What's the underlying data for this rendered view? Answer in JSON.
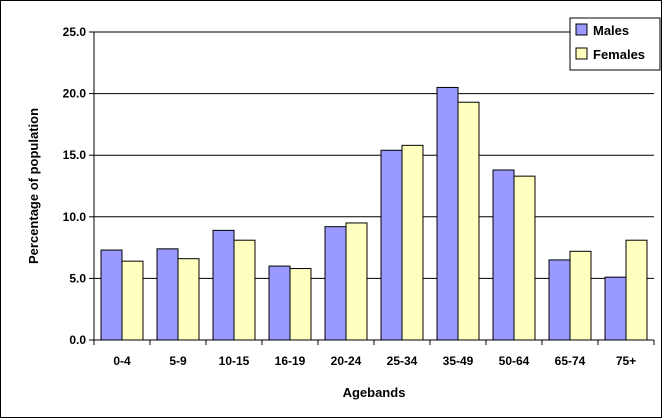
{
  "chart_data": {
    "type": "bar",
    "title": "",
    "xlabel": "Agebands",
    "ylabel": "Percentage of population",
    "categories": [
      "0-4",
      "5-9",
      "10-15",
      "16-19",
      "20-24",
      "25-34",
      "35-49",
      "50-64",
      "65-74",
      "75+"
    ],
    "series": [
      {
        "name": "Males",
        "values": [
          7.3,
          7.4,
          8.9,
          6.0,
          9.2,
          15.4,
          20.5,
          13.8,
          6.5,
          5.1
        ]
      },
      {
        "name": "Females",
        "values": [
          6.4,
          6.6,
          8.1,
          5.8,
          9.5,
          15.8,
          19.3,
          13.3,
          7.2,
          8.1
        ]
      }
    ],
    "ylim": [
      0,
      25
    ],
    "yticks": [
      0.0,
      5.0,
      10.0,
      15.0,
      20.0,
      25.0
    ],
    "ytick_labels": [
      "0.0",
      "5.0",
      "10.0",
      "15.0",
      "20.0",
      "25.0"
    ],
    "grid": true,
    "legend_position": "top-right",
    "colors": {
      "Males": "#9999ff",
      "Females": "#ffffc0"
    }
  }
}
